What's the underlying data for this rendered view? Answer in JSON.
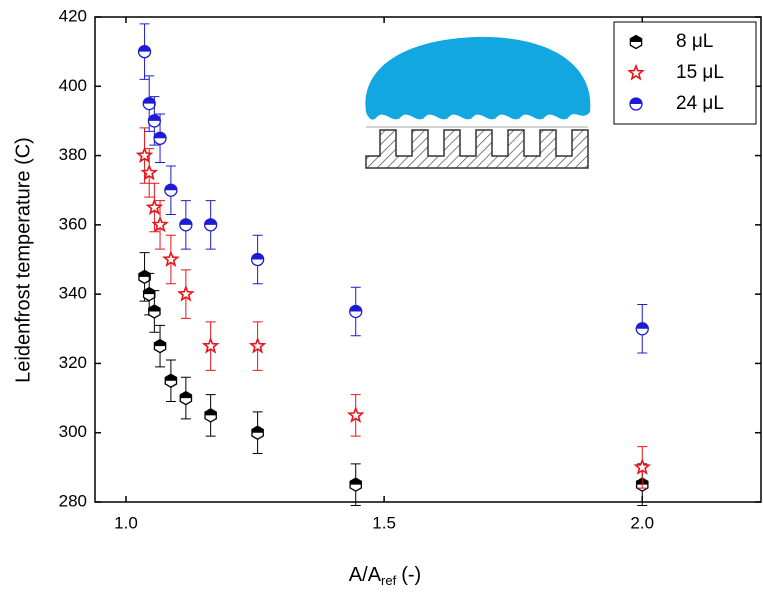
{
  "chart_data": {
    "type": "scatter",
    "x_label": "A/A",
    "x_label_sub": "ref",
    "x_label_tail": "(-)",
    "y_label": "Leidenfrost temperature (C)",
    "xlim": [
      0.94,
      2.23
    ],
    "xticks": [
      {
        "value": 1,
        "label": "1.0"
      },
      {
        "value": 1.5,
        "label": "1.5"
      },
      {
        "value": 2,
        "label": "2.0"
      }
    ],
    "ylim": [
      280,
      420
    ],
    "yticks": [
      280,
      300,
      320,
      340,
      360,
      380,
      400,
      420
    ],
    "legend": "top-right",
    "series": [
      {
        "name": "8 μL",
        "color": "#000000",
        "marker": "hexagon",
        "x": [
          1.036,
          1.045,
          1.055,
          1.066,
          1.087,
          1.116,
          1.164,
          1.255,
          1.445,
          2.0
        ],
        "values": [
          345,
          340,
          335,
          325,
          315,
          310,
          305,
          300,
          285,
          285
        ],
        "errors": [
          7,
          6,
          6,
          6,
          6,
          6,
          6,
          6,
          6,
          6
        ]
      },
      {
        "name": "15 μL",
        "color": "#e8141b",
        "marker": "star",
        "x": [
          1.036,
          1.045,
          1.055,
          1.066,
          1.087,
          1.116,
          1.164,
          1.255,
          1.445,
          2.0
        ],
        "values": [
          380,
          375,
          365,
          360,
          350,
          340,
          325,
          325,
          305,
          290
        ],
        "errors": [
          8,
          7,
          7,
          7,
          7,
          7,
          7,
          7,
          6,
          6
        ]
      },
      {
        "name": "24 μL",
        "color": "#1c1cd6",
        "marker": "circle",
        "x": [
          1.036,
          1.045,
          1.055,
          1.066,
          1.087,
          1.116,
          1.164,
          1.255,
          1.445,
          2.0
        ],
        "values": [
          410,
          395,
          390,
          385,
          370,
          360,
          360,
          350,
          335,
          330
        ],
        "errors": [
          8,
          8,
          7,
          7,
          7,
          7,
          7,
          7,
          7,
          7
        ]
      }
    ]
  }
}
